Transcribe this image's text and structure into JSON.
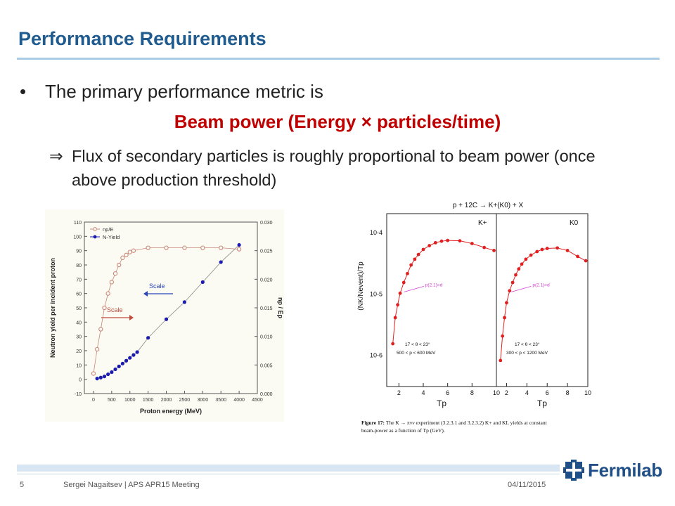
{
  "slide": {
    "title": "Performance Requirements",
    "bullet_marker": "•",
    "bullet_text": "The primary performance metric is",
    "highlight": "Beam power (Energy × particles/time)",
    "implies_glyph": "⇒",
    "sub_text": "Flux of secondary particles is roughly proportional to beam power (once above production threshold)"
  },
  "footer": {
    "page_number": "5",
    "presenter": "Sergei Nagaitsev | APS APR15 Meeting",
    "date": "04/11/2015",
    "logo_text": "Fermilab",
    "logo_icon": "fermilab-logo-icon"
  },
  "chart_data": [
    {
      "type": "scatter",
      "xlabel": "Proton energy (MeV)",
      "ylabel": "Neutron yield per incident proton",
      "ylabel_right": "np / Ep",
      "xlim": [
        -250,
        4500
      ],
      "ylim": [
        -10,
        110
      ],
      "ylim_right": [
        0,
        0.03
      ],
      "x_ticks": [
        "0",
        "500",
        "1000",
        "1500",
        "2000",
        "2500",
        "3000",
        "3500",
        "4000",
        "4500"
      ],
      "y_ticks": [
        "-10",
        "0",
        "10",
        "20",
        "30",
        "40",
        "50",
        "60",
        "70",
        "80",
        "90",
        "100",
        "110"
      ],
      "y_ticks_right": [
        "0.000",
        "0.005",
        "0.010",
        "0.015",
        "0.020",
        "0.025",
        "0.030"
      ],
      "legend": [
        "np/E",
        "N-Yield"
      ],
      "annotations": [
        "Scale",
        "Scale"
      ],
      "series": [
        {
          "name": "np/E",
          "color": "#c8877a",
          "marker": "open-circle",
          "x": [
            0,
            100,
            200,
            300,
            400,
            500,
            600,
            700,
            800,
            900,
            1000,
            1100,
            1500,
            2000,
            2500,
            3000,
            3500,
            4000
          ],
          "y": [
            4,
            21,
            35,
            50,
            60,
            68,
            74,
            80,
            85,
            87,
            89,
            90,
            92,
            92,
            92,
            92,
            92,
            91
          ]
        },
        {
          "name": "N-Yield",
          "color": "#1b1bb0",
          "marker": "filled-circle",
          "x": [
            100,
            200,
            300,
            400,
            500,
            600,
            700,
            800,
            900,
            1000,
            1100,
            1200,
            1500,
            2000,
            2500,
            3000,
            3500,
            4000
          ],
          "y": [
            0.5,
            1.2,
            2,
            3.5,
            5,
            7,
            9,
            11,
            13,
            15,
            17,
            19,
            29,
            42,
            54,
            68,
            82,
            94
          ]
        }
      ]
    },
    {
      "type": "line",
      "title": "p + 12C → K+(K0) + X",
      "ylabel": "(NK/Nevent)/Tp",
      "xlabel": "Tp",
      "log_y": true,
      "ylim": [
        3e-07,
        0.0002
      ],
      "xlim": [
        1,
        10
      ],
      "x_ticks": [
        "2",
        "4",
        "6",
        "8",
        "10"
      ],
      "y_ticks": [
        "10-4",
        "10-5",
        "10-6"
      ],
      "panels": [
        {
          "label": "K+",
          "annotation": "p(2.1)=d",
          "cuts": [
            "17 < θ < 23°",
            "500 < p < 600 MeV"
          ],
          "x": [
            1.5,
            1.7,
            1.9,
            2.1,
            2.4,
            2.7,
            3.0,
            3.3,
            3.6,
            4.0,
            4.5,
            5.0,
            5.5,
            6.0,
            7.0,
            8.0,
            9.0,
            9.8
          ],
          "y": [
            1.5e-06,
            4e-06,
            6.5e-06,
            1e-05,
            1.5e-05,
            2.1e-05,
            2.9e-05,
            3.6e-05,
            4.3e-05,
            5.2e-05,
            6e-05,
            6.7e-05,
            7.1e-05,
            7.3e-05,
            7.2e-05,
            6.5e-05,
            5.6e-05,
            5e-05
          ]
        },
        {
          "label": "K0",
          "annotation": "p(2.1)=d",
          "cuts": [
            "17 < θ < 23°",
            "300 < p < 1200 MeV"
          ],
          "x": [
            1.4,
            1.6,
            1.8,
            2.0,
            2.3,
            2.6,
            2.9,
            3.2,
            3.5,
            3.9,
            4.4,
            5.0,
            5.5,
            6.0,
            7.0,
            8.0,
            9.0,
            9.8
          ],
          "y": [
            8e-07,
            2e-06,
            4e-06,
            7e-06,
            1.1e-05,
            1.5e-05,
            2e-05,
            2.5e-05,
            3e-05,
            3.6e-05,
            4.2e-05,
            4.8e-05,
            5.2e-05,
            5.4e-05,
            5.5e-05,
            5e-05,
            4e-05,
            3.4e-05
          ]
        }
      ],
      "caption_bold": "Figure 17:",
      "caption": "The K → πνν experiment (3.2.3.1 and 3.2.3.2) K+ and KL yields at constant beam-power as a function of Tp (GeV)."
    }
  ]
}
